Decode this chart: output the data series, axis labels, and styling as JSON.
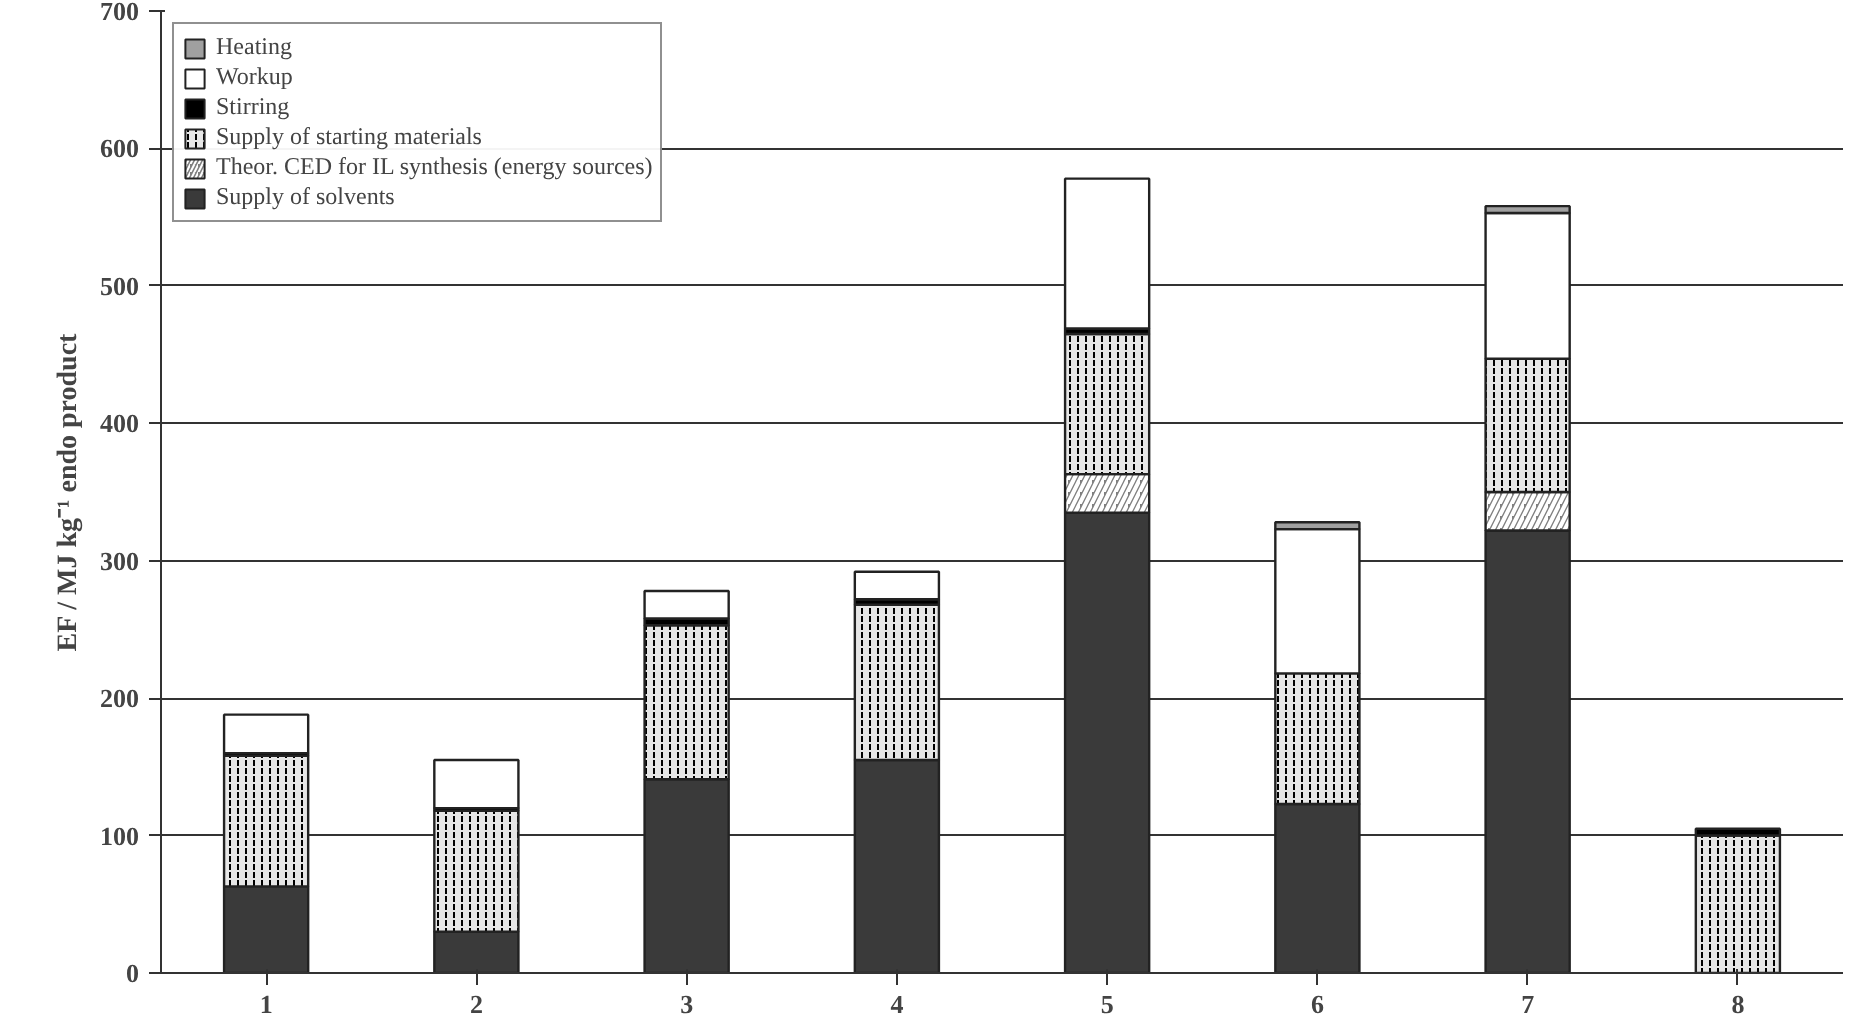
{
  "chart_data": {
    "type": "bar",
    "stacked": true,
    "ylabel": "EF / MJ kg⁻¹ endo product",
    "categories": [
      "1",
      "2",
      "3",
      "4",
      "5",
      "6",
      "7",
      "8"
    ],
    "series": [
      {
        "name": "Supply of solvents",
        "color": "#3a3a3a",
        "values": [
          63,
          30,
          141,
          155,
          335,
          123,
          322,
          null
        ]
      },
      {
        "name": "Theor. CED for IL synthesis (energy sources)",
        "color": "#808080",
        "values": [
          null,
          null,
          null,
          null,
          28,
          null,
          28,
          null
        ]
      },
      {
        "name": "Supply of starting materials",
        "color": "#e6e6e6",
        "values": [
          95,
          88,
          112,
          113,
          102,
          95,
          97,
          100
        ]
      },
      {
        "name": "Stirring",
        "color": "#000000",
        "values": [
          2,
          2,
          5,
          4,
          4,
          null,
          null,
          5
        ]
      },
      {
        "name": "Workup",
        "color": "#ffffff",
        "values": [
          28,
          35,
          20,
          20,
          109,
          105,
          106,
          null
        ]
      },
      {
        "name": "Heating",
        "color": "#a0a0a0",
        "values": [
          null,
          null,
          null,
          null,
          null,
          5,
          5,
          null
        ]
      }
    ],
    "ylim": [
      0,
      700
    ],
    "yticks": [
      0,
      100,
      200,
      300,
      400,
      500,
      600,
      700
    ],
    "grid": "y",
    "legend": "top left"
  }
}
